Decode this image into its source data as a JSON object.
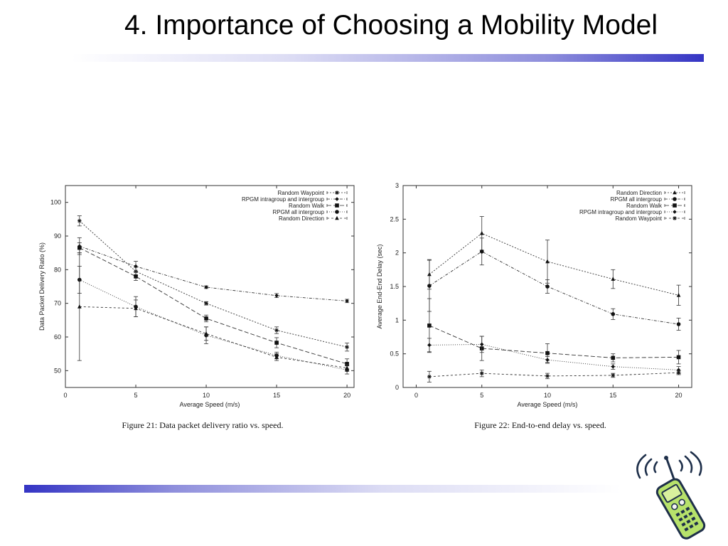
{
  "slide": {
    "title": "4. Importance of Choosing a Mobility Model"
  },
  "chart_data": [
    {
      "type": "line",
      "caption": "Figure 21: Data packet delivery ratio vs. speed.",
      "xlabel": "Average Speed (m/s)",
      "ylabel": "Data Packet Delivery Ratio (%)",
      "xlim": [
        0,
        20.5
      ],
      "ylim": [
        45,
        105
      ],
      "xticks": [
        0,
        5,
        10,
        15,
        20
      ],
      "yticks": [
        50,
        60,
        70,
        80,
        90,
        100
      ],
      "grid": false,
      "legend_position": "top-right",
      "x": [
        1,
        5,
        10,
        15,
        20
      ],
      "series": [
        {
          "name": "Random Waypoint",
          "marker": "star",
          "values": [
            94.5,
            79.5,
            70,
            62,
            57
          ],
          "err": [
            1.5,
            1.2,
            0.5,
            1.0,
            1.2
          ]
        },
        {
          "name": "RPGM intragroup and intergroup",
          "marker": "diamond",
          "values": [
            87,
            81,
            74.8,
            72.3,
            70.7
          ],
          "err": [
            2.5,
            1.5,
            0.4,
            0.6,
            0.5
          ]
        },
        {
          "name": "Random Walk",
          "marker": "square",
          "values": [
            86.5,
            78,
            65.5,
            58.3,
            52
          ],
          "err": [
            1.5,
            1.2,
            1.0,
            1.5,
            1.5
          ]
        },
        {
          "name": "RPGM all intergroup",
          "marker": "circle",
          "values": [
            77,
            69,
            60.5,
            54.5,
            50.2
          ],
          "err": [
            4,
            3,
            2.5,
            1.0,
            1.2
          ]
        },
        {
          "name": "Random Direction",
          "marker": "triangle",
          "values": [
            69,
            68.5,
            61,
            54,
            50.8
          ],
          "err": [
            16,
            2.5,
            2.0,
            1.0,
            1.0
          ]
        }
      ]
    },
    {
      "type": "line",
      "caption": "Figure 22: End-to-end delay vs. speed.",
      "xlabel": "Average Speed (m/s)",
      "ylabel": "Average End-End Delay (sec)",
      "xlim": [
        -1,
        21
      ],
      "ylim": [
        0,
        3
      ],
      "xticks": [
        0,
        5,
        10,
        15,
        20
      ],
      "yticks": [
        0,
        0.5,
        1,
        1.5,
        2,
        2.5,
        3
      ],
      "grid": false,
      "legend_position": "top-right",
      "x": [
        1,
        5,
        10,
        15,
        20
      ],
      "series": [
        {
          "name": "Random Direction",
          "marker": "triangle",
          "values": [
            1.68,
            2.29,
            1.87,
            1.61,
            1.37
          ],
          "err": [
            0.22,
            0.25,
            0.32,
            0.14,
            0.15
          ]
        },
        {
          "name": "RPGM all intergroup",
          "marker": "circle",
          "values": [
            1.51,
            2.02,
            1.5,
            1.09,
            0.94
          ],
          "err": [
            0.38,
            0.2,
            0.1,
            0.08,
            0.09
          ]
        },
        {
          "name": "Random Walk",
          "marker": "square",
          "values": [
            0.92,
            0.58,
            0.51,
            0.44,
            0.45
          ],
          "err": [
            0.4,
            0.18,
            0.14,
            0.06,
            0.1
          ]
        },
        {
          "name": "RPGM intragroup and intergroup",
          "marker": "diamond",
          "values": [
            0.63,
            0.64,
            0.41,
            0.31,
            0.26
          ],
          "err": [
            0.1,
            0.12,
            0.05,
            0.04,
            0.05
          ]
        },
        {
          "name": "Random Waypoint",
          "marker": "star",
          "values": [
            0.16,
            0.21,
            0.17,
            0.18,
            0.22
          ],
          "err": [
            0.08,
            0.05,
            0.04,
            0.03,
            0.03
          ]
        }
      ]
    }
  ]
}
